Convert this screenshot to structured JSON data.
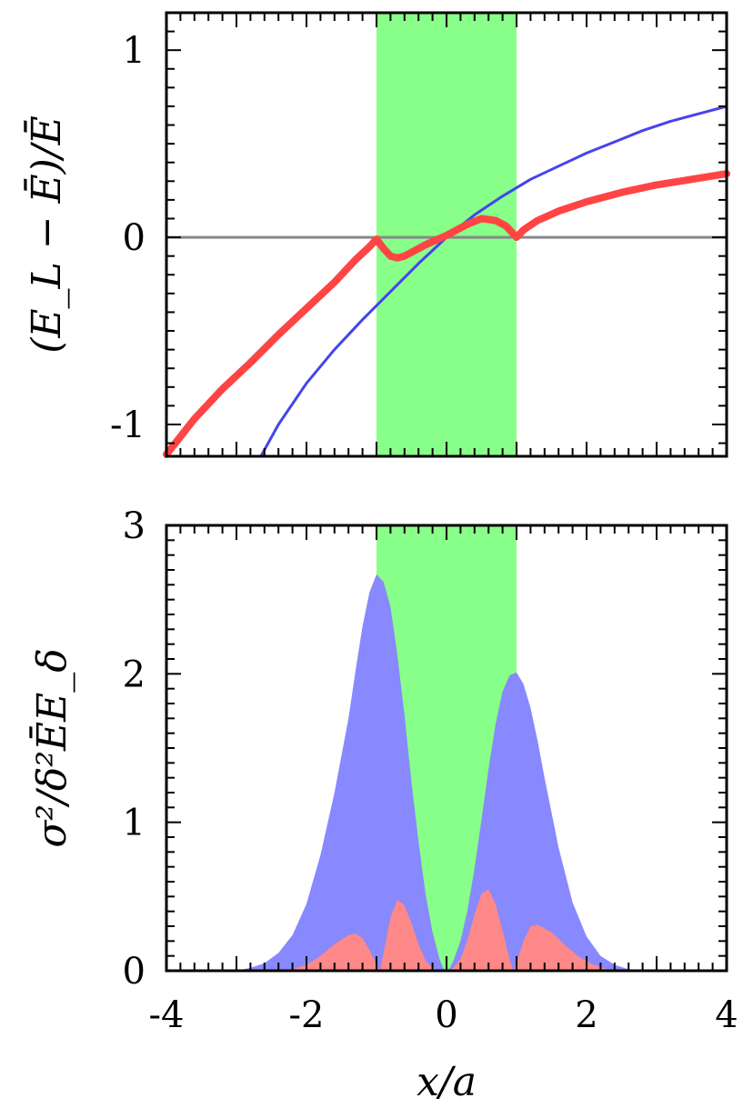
{
  "xlabel": "x/a",
  "chart_data": [
    {
      "type": "line",
      "ylabel": "(E_L − Ē)/Ē",
      "xlim": [
        -4,
        4
      ],
      "ylim": [
        -1.17,
        1.2
      ],
      "yticks": [
        "1",
        "0",
        "-1"
      ],
      "yticks_values": [
        1,
        0,
        -1
      ],
      "shaded_region": {
        "x": [
          -1.0,
          1.0
        ],
        "color": "#88ff88"
      },
      "reference_line": {
        "y": 0,
        "color": "#888888"
      },
      "series": [
        {
          "color": "#4444ee",
          "x": [
            -2.65,
            -2.4,
            -2.0,
            -1.6,
            -1.2,
            -0.8,
            -0.4,
            0.0,
            0.4,
            0.8,
            1.2,
            1.6,
            2.0,
            2.4,
            2.8,
            3.2,
            3.6,
            4.0
          ],
          "y": [
            -1.18,
            -1.0,
            -0.78,
            -0.6,
            -0.44,
            -0.29,
            -0.14,
            0.0,
            0.12,
            0.22,
            0.31,
            0.38,
            0.45,
            0.51,
            0.57,
            0.62,
            0.66,
            0.7
          ]
        },
        {
          "color": "#ff4444",
          "x": [
            -4.0,
            -3.6,
            -3.2,
            -2.8,
            -2.4,
            -2.0,
            -1.6,
            -1.3,
            -1.1,
            -1.0,
            -0.9,
            -0.8,
            -0.7,
            -0.6,
            -0.5,
            -0.3,
            0.0,
            0.3,
            0.5,
            0.7,
            0.85,
            0.95,
            1.0,
            1.1,
            1.3,
            1.6,
            2.0,
            2.5,
            3.0,
            3.5,
            4.0
          ],
          "y": [
            -1.16,
            -0.97,
            -0.81,
            -0.67,
            -0.52,
            -0.38,
            -0.24,
            -0.12,
            -0.05,
            -0.01,
            -0.06,
            -0.1,
            -0.11,
            -0.1,
            -0.08,
            -0.04,
            0.01,
            0.07,
            0.1,
            0.09,
            0.06,
            0.02,
            0.0,
            0.04,
            0.09,
            0.14,
            0.19,
            0.24,
            0.28,
            0.31,
            0.34
          ]
        }
      ]
    },
    {
      "type": "area",
      "ylabel": "σ²/δ²ĒE_δ",
      "xlim": [
        -4,
        4
      ],
      "ylim": [
        0,
        3
      ],
      "xticks": [
        "-4",
        "-2",
        "0",
        "2",
        "4"
      ],
      "xticks_values": [
        -4,
        -2,
        0,
        2,
        4
      ],
      "yticks": [
        "3",
        "2",
        "1",
        "0"
      ],
      "yticks_values": [
        3,
        2,
        1,
        0
      ],
      "shaded_region": {
        "x": [
          -1.0,
          1.0
        ],
        "color": "#88ff88"
      },
      "series": [
        {
          "color": "#8888ff",
          "x": [
            -3.0,
            -2.8,
            -2.6,
            -2.4,
            -2.2,
            -2.0,
            -1.8,
            -1.6,
            -1.4,
            -1.3,
            -1.2,
            -1.1,
            -1.0,
            -0.9,
            -0.8,
            -0.7,
            -0.6,
            -0.5,
            -0.4,
            -0.3,
            -0.2,
            -0.1,
            -0.05,
            0.0,
            0.05,
            0.1,
            0.2,
            0.3,
            0.4,
            0.5,
            0.6,
            0.7,
            0.8,
            0.9,
            1.0,
            1.1,
            1.2,
            1.3,
            1.4,
            1.6,
            1.8,
            2.0,
            2.2,
            2.4,
            2.6,
            2.8,
            3.0
          ],
          "y": [
            0.0,
            0.02,
            0.05,
            0.12,
            0.24,
            0.45,
            0.78,
            1.2,
            1.7,
            2.02,
            2.32,
            2.55,
            2.67,
            2.62,
            2.45,
            2.12,
            1.72,
            1.27,
            0.87,
            0.52,
            0.26,
            0.08,
            0.02,
            0.0,
            0.02,
            0.07,
            0.2,
            0.41,
            0.69,
            1.02,
            1.36,
            1.66,
            1.88,
            1.99,
            2.01,
            1.93,
            1.77,
            1.55,
            1.3,
            0.83,
            0.46,
            0.23,
            0.1,
            0.04,
            0.01,
            0.0,
            0.0
          ]
        },
        {
          "color": "#ff8888",
          "x": [
            -2.4,
            -2.2,
            -2.0,
            -1.8,
            -1.6,
            -1.4,
            -1.3,
            -1.2,
            -1.1,
            -1.0,
            -0.95,
            -0.9,
            -0.8,
            -0.7,
            -0.6,
            -0.5,
            -0.4,
            -0.3,
            -0.2,
            -0.1,
            0.0,
            0.1,
            0.2,
            0.3,
            0.4,
            0.5,
            0.6,
            0.7,
            0.8,
            0.9,
            0.95,
            1.0,
            1.1,
            1.2,
            1.3,
            1.5,
            1.7,
            1.9,
            2.1,
            2.3,
            2.5
          ],
          "y": [
            0.0,
            0.01,
            0.04,
            0.1,
            0.18,
            0.24,
            0.25,
            0.22,
            0.14,
            0.04,
            0.0,
            0.12,
            0.36,
            0.48,
            0.44,
            0.32,
            0.18,
            0.07,
            0.02,
            0.0,
            0.0,
            0.02,
            0.08,
            0.21,
            0.38,
            0.52,
            0.55,
            0.45,
            0.27,
            0.08,
            0.0,
            0.05,
            0.2,
            0.3,
            0.31,
            0.26,
            0.17,
            0.09,
            0.04,
            0.01,
            0.0
          ]
        }
      ]
    }
  ]
}
